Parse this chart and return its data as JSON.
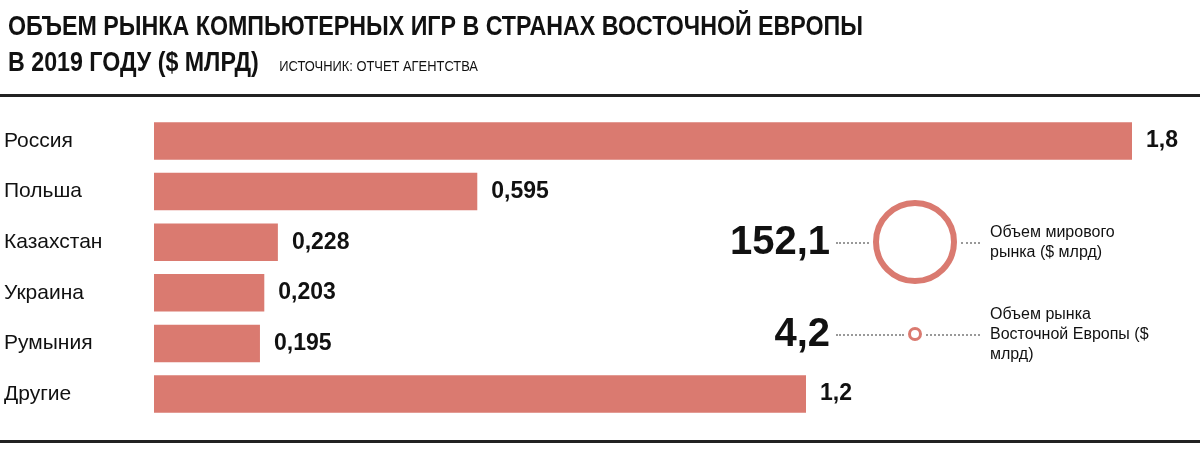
{
  "chart_data": [
    {
      "type": "bar",
      "orientation": "horizontal",
      "title": "ОБЪЕМ РЫНКА КОМПЬЮТЕРНЫХ ИГР В СТРАНАХ ВОСТОЧНОЙ ЕВРОПЫ В 2019 ГОДУ ($ МЛРД)",
      "annotations": [
        "ИСТОЧНИК: ОТЧЕТ АГЕНТСТВА"
      ],
      "categories": [
        "Россия",
        "Польша",
        "Казахстан",
        "Украина",
        "Румыния",
        "Другие"
      ],
      "values": [
        1.8,
        0.595,
        0.228,
        0.203,
        0.195,
        1.2
      ],
      "value_labels": [
        "1,8",
        "0,595",
        "0,228",
        "0,203",
        "0,195",
        "1,2"
      ],
      "color": "#da7a70",
      "tick_labels": "y"
    },
    {
      "type": "other",
      "categories": [
        "Объем мирового рынка ($ млрд)",
        "Объем рынка Восточной Европы ($ млрд)"
      ],
      "values": [
        152.1,
        4.2
      ],
      "value_labels": [
        "152,1",
        "4,2"
      ],
      "color": "#da7a70"
    }
  ]
}
